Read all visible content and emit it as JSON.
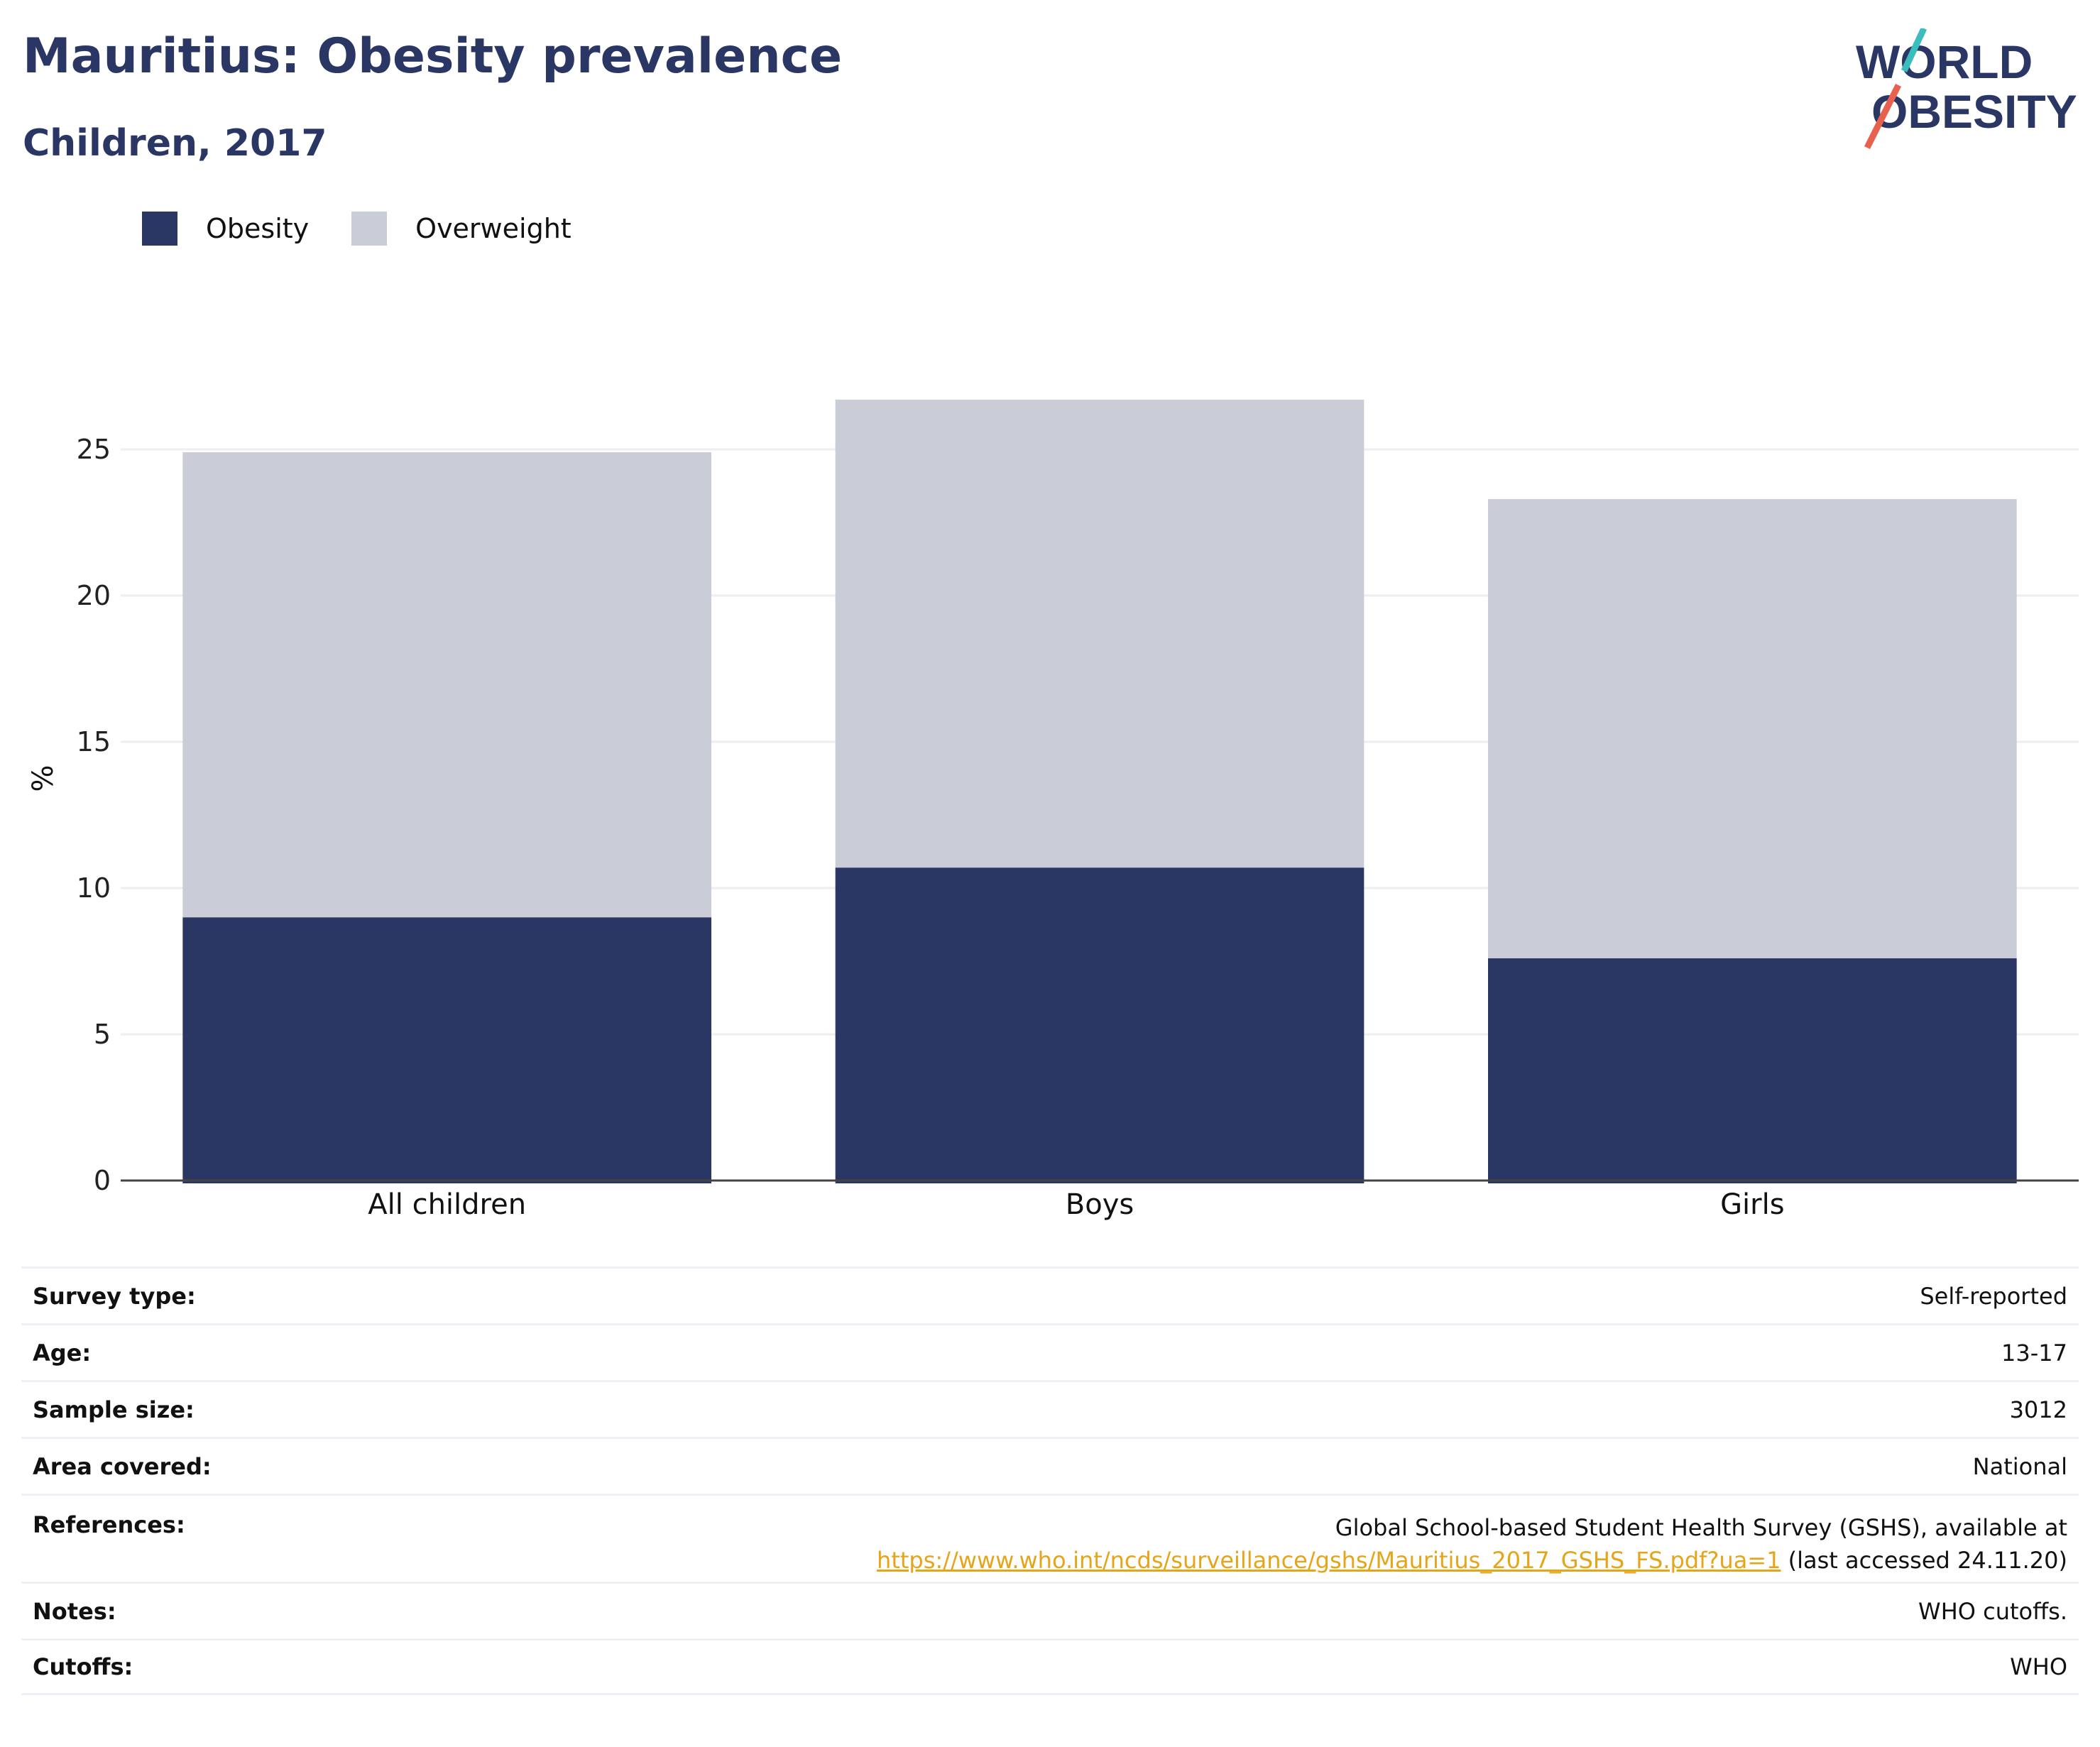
{
  "header": {
    "title": "Mauritius: Obesity prevalence",
    "subtitle": "Children, 2017",
    "logo_line1": "WORLD",
    "logo_line2": "OBESITY"
  },
  "legend": {
    "items": [
      {
        "label": "Obesity",
        "color": "#2a3663"
      },
      {
        "label": "Overweight",
        "color": "#caccd8"
      }
    ]
  },
  "chart_data": {
    "type": "bar",
    "stacked": true,
    "categories": [
      "All children",
      "Boys",
      "Girls"
    ],
    "series": [
      {
        "name": "Obesity",
        "color": "#2a3663",
        "values": [
          9.0,
          10.7,
          7.6
        ]
      },
      {
        "name": "Overweight",
        "color": "#caccd8",
        "values": [
          15.9,
          16.0,
          15.7
        ]
      }
    ],
    "ylabel": "%",
    "xlabel": "",
    "ylim": [
      0,
      27.5
    ],
    "yticks": [
      0,
      5,
      10,
      15,
      20,
      25
    ],
    "grid": true,
    "legend_position": "top-left"
  },
  "table": {
    "rows": [
      {
        "key": "Survey type:",
        "value": "Self-reported"
      },
      {
        "key": "Age:",
        "value": "13-17"
      },
      {
        "key": "Sample size:",
        "value": "3012"
      },
      {
        "key": "Area covered:",
        "value": "National"
      },
      {
        "key": "References:",
        "value_line1": "Global School-based Student Health Survey (GSHS), available at",
        "link": "https://www.who.int/ncds/surveillance/gshs/Mauritius_2017_GSHS_FS.pdf?ua=1",
        "value_suffix": " (last accessed 24.11.20)"
      },
      {
        "key": "Notes:",
        "value": "WHO cutoffs."
      },
      {
        "key": "Cutoffs:",
        "value": "WHO"
      }
    ]
  }
}
